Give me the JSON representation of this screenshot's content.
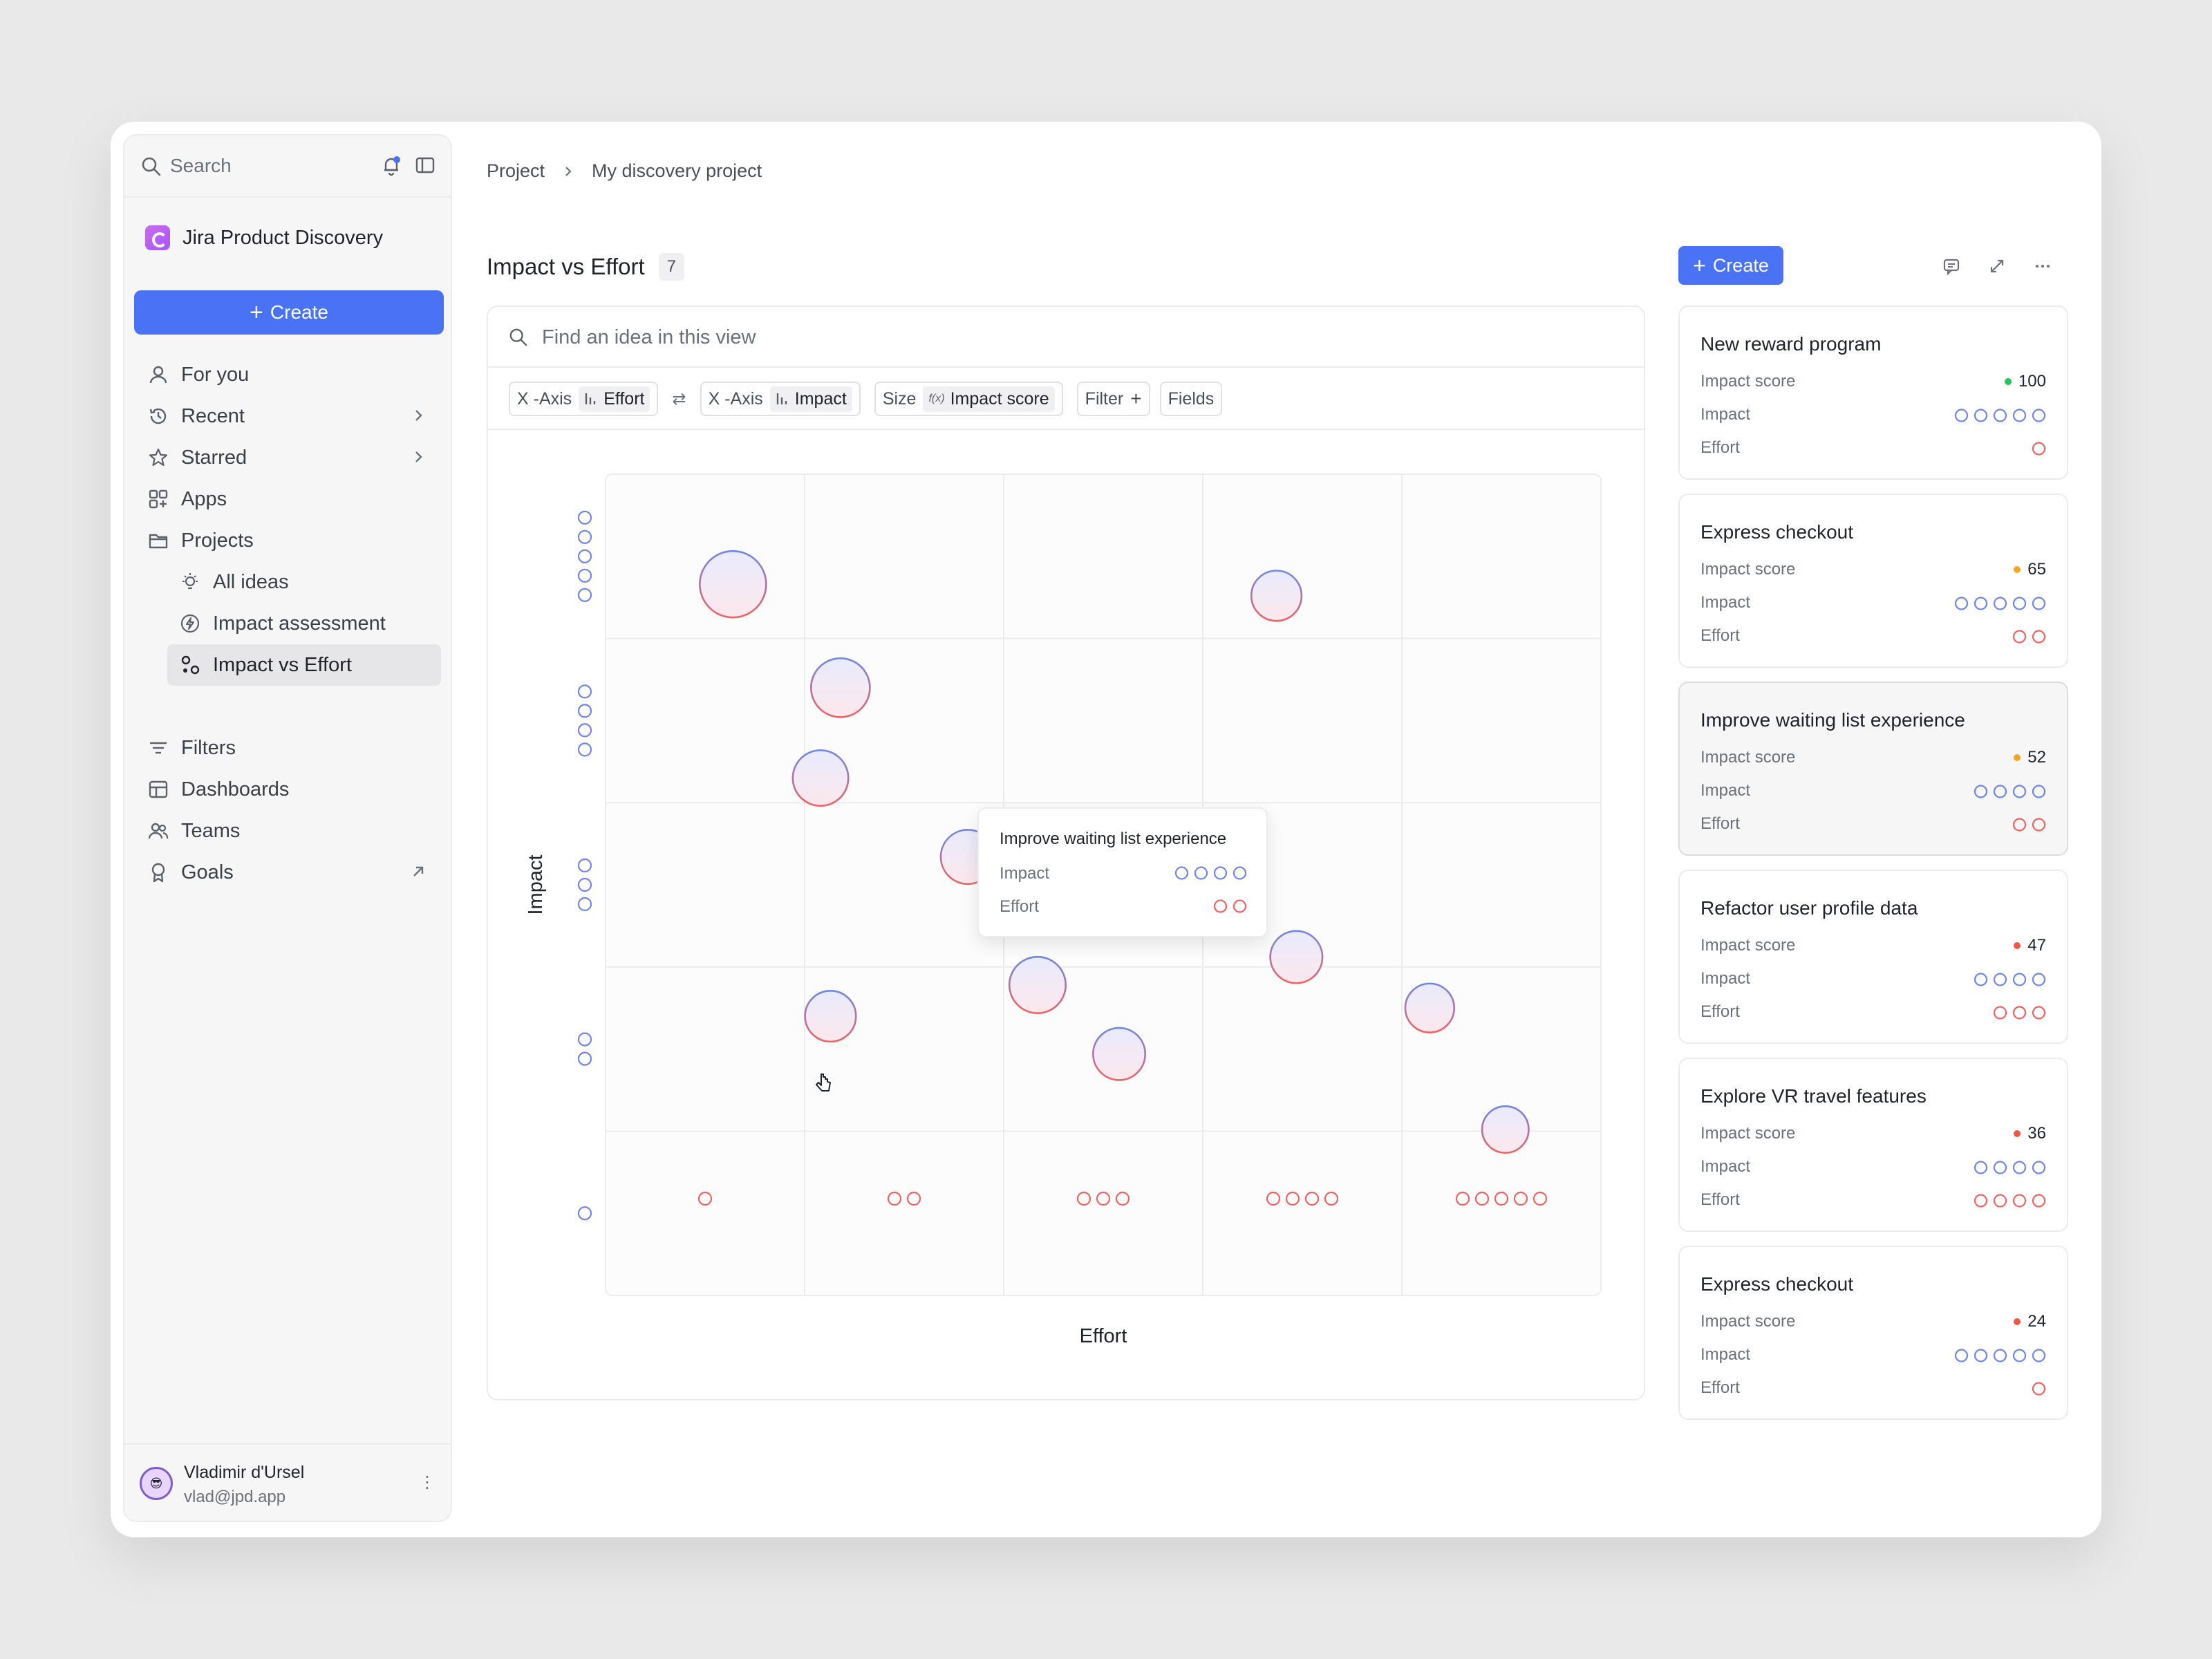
{
  "sidebar": {
    "search_placeholder": "Search",
    "brand": "Jira Product Discovery",
    "create_label": "Create",
    "items": [
      {
        "label": "For you"
      },
      {
        "label": "Recent"
      },
      {
        "label": "Starred"
      },
      {
        "label": "Apps"
      },
      {
        "label": "Projects"
      },
      {
        "label": "All ideas"
      },
      {
        "label": "Impact assessment"
      },
      {
        "label": "Impact vs Effort"
      },
      {
        "label": "Filters"
      },
      {
        "label": "Dashboards"
      },
      {
        "label": "Teams"
      },
      {
        "label": "Goals"
      }
    ],
    "user": {
      "name": "Vladimir d'Ursel",
      "email": "vlad@jpd.app"
    }
  },
  "breadcrumb": {
    "root": "Project",
    "current": "My discovery project"
  },
  "view": {
    "title": "Impact vs Effort",
    "count": "7",
    "find_placeholder": "Find an idea in this view",
    "toolbar": {
      "x_axis_label": "X -Axis",
      "x_axis_value": "Effort",
      "y_axis_label": "X -Axis",
      "y_axis_value": "Impact",
      "size_label": "Size",
      "size_fx": "f(x)",
      "size_value": "Impact score",
      "filter_label": "Filter",
      "fields_label": "Fields"
    }
  },
  "chart_data": {
    "type": "scatter",
    "xlabel": "Effort",
    "ylabel": "Impact",
    "x_levels": [
      1,
      2,
      3,
      4,
      5
    ],
    "y_levels": [
      1,
      2,
      3,
      4,
      5
    ],
    "size_field": "Impact score",
    "points": [
      {
        "effort": 1.14,
        "impact": 4.83,
        "size": 100
      },
      {
        "effort": 1.68,
        "impact": 4.2,
        "size": 65
      },
      {
        "effort": 1.58,
        "impact": 3.65,
        "size": 52
      },
      {
        "effort": 2.32,
        "impact": 3.17,
        "size": 47
      },
      {
        "effort": 1.63,
        "impact": 2.2,
        "size": 36
      },
      {
        "effort": 2.67,
        "impact": 2.39,
        "size": 55
      },
      {
        "effort": 3.08,
        "impact": 1.97,
        "size": 40
      },
      {
        "effort": 3.87,
        "impact": 4.76,
        "size": 34
      },
      {
        "effort": 3.97,
        "impact": 2.56,
        "size": 40
      },
      {
        "effort": 4.64,
        "impact": 2.25,
        "size": 30
      },
      {
        "effort": 5.02,
        "impact": 1.51,
        "size": 24
      }
    ]
  },
  "tooltip": {
    "title": "Improve waiting list experience",
    "impact_label": "Impact",
    "effort_label": "Effort",
    "impact": 4,
    "effort": 2
  },
  "panel": {
    "create_label": "Create",
    "cards": [
      {
        "title": "New reward program",
        "score_label": "Impact score",
        "score": "100",
        "score_color": "#22c55e",
        "impact_label": "Impact",
        "impact": 5,
        "effort_label": "Effort",
        "effort": 1
      },
      {
        "title": "Express checkout",
        "score_label": "Impact score",
        "score": "65",
        "score_color": "#f5a623",
        "impact_label": "Impact",
        "impact": 5,
        "effort_label": "Effort",
        "effort": 2
      },
      {
        "title": "Improve waiting list experience",
        "score_label": "Impact score",
        "score": "52",
        "score_color": "#f5a623",
        "impact_label": "Impact",
        "impact": 4,
        "effort_label": "Effort",
        "effort": 2
      },
      {
        "title": "Refactor user profile data",
        "score_label": "Impact score",
        "score": "47",
        "score_color": "#f05a44",
        "impact_label": "Impact",
        "impact": 4,
        "effort_label": "Effort",
        "effort": 3
      },
      {
        "title": "Explore VR travel features",
        "score_label": "Impact score",
        "score": "36",
        "score_color": "#f05a44",
        "impact_label": "Impact",
        "impact": 4,
        "effort_label": "Effort",
        "effort": 4
      },
      {
        "title": "Express checkout",
        "score_label": "Impact score",
        "score": "24",
        "score_color": "#f05a44",
        "impact_label": "Impact",
        "impact": 5,
        "effort_label": "Effort",
        "effort": 1
      }
    ]
  },
  "colors": {
    "accent": "#4a72f5",
    "impact": "#6f86e8",
    "effort": "#f06262"
  }
}
